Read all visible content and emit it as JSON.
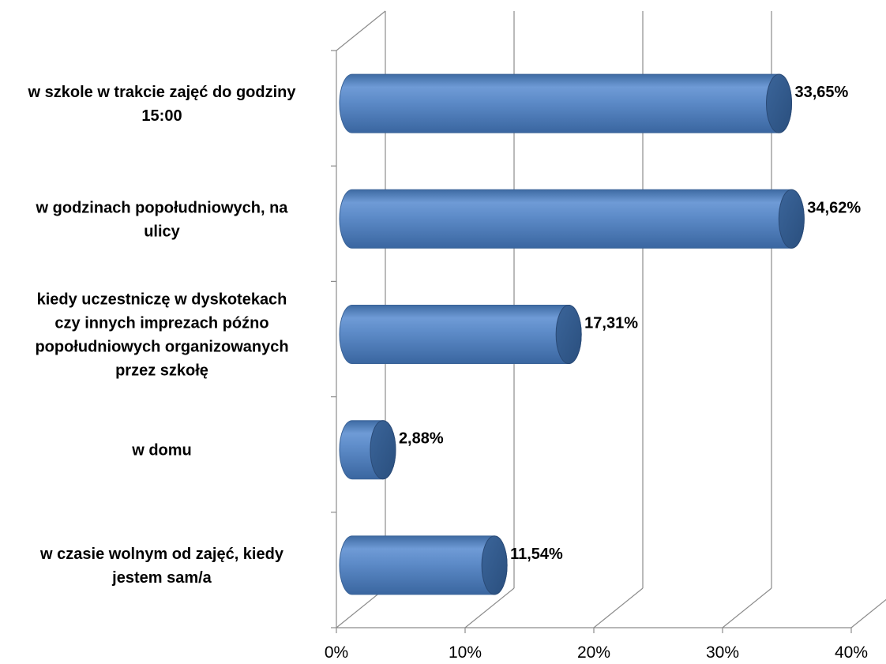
{
  "chart_data": {
    "type": "bar",
    "orientation": "horizontal",
    "style": "3d-cylinder",
    "categories": [
      [
        "w szkole w trakcie zajęć do godziny",
        "15:00"
      ],
      [
        "w godzinach popołudniowych, na",
        "ulicy"
      ],
      [
        "kiedy uczestniczę w dyskotekach",
        "czy innych imprezach późno",
        "popołudniowych organizowanych",
        "przez szkołę"
      ],
      [
        "w domu"
      ],
      [
        "w czasie wolnym od zajęć, kiedy",
        "jestem sam/a"
      ]
    ],
    "values": [
      33.65,
      34.62,
      17.31,
      2.88,
      11.54
    ],
    "data_labels": [
      "33,65%",
      "34,62%",
      "17,31%",
      "2,88%",
      "11,54%"
    ],
    "xlim": [
      0,
      40
    ],
    "xticks": [
      0,
      10,
      20,
      30,
      40
    ],
    "xtick_labels": [
      "0%",
      "10%",
      "20%",
      "30%",
      "40%"
    ],
    "grid": true,
    "legend": "none",
    "title": "",
    "xlabel": "",
    "ylabel": "",
    "bar_color": "#4a7ebb",
    "bar_cap_color": "#2f5584",
    "grid_color": "#8c8c8c"
  }
}
